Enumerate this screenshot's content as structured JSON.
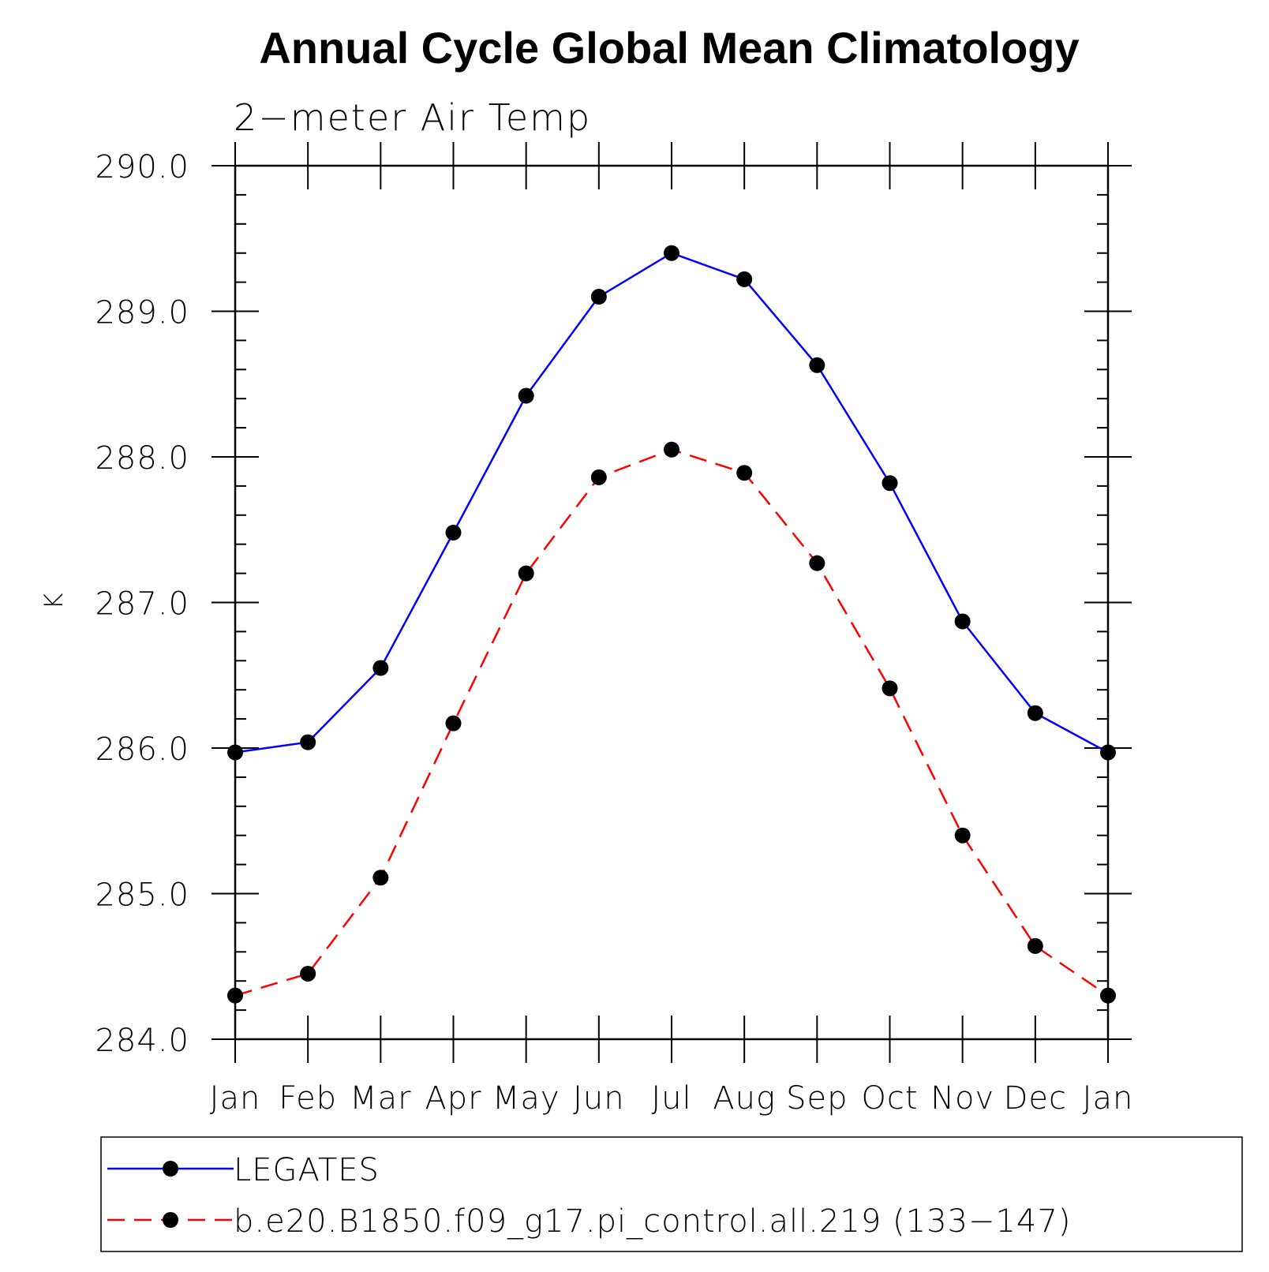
{
  "chart_data": {
    "type": "line",
    "title": "Annual Cycle Global Mean Climatology",
    "subtitle": "2−meter Air Temp",
    "xlabel": "",
    "ylabel": "K",
    "categories": [
      "Jan",
      "Feb",
      "Mar",
      "Apr",
      "May",
      "Jun",
      "Jul",
      "Aug",
      "Sep",
      "Oct",
      "Nov",
      "Dec",
      "Jan"
    ],
    "ylim": [
      284.0,
      290.0
    ],
    "yticks": [
      "284.0",
      "285.0",
      "286.0",
      "287.0",
      "288.0",
      "289.0",
      "290.0"
    ],
    "grid": false,
    "legend_position": "bottom",
    "series": [
      {
        "name": "LEGATES",
        "color": "#0000ff",
        "line_style": "solid",
        "marker": "filled-circle",
        "values": [
          285.97,
          286.04,
          286.55,
          287.48,
          288.42,
          289.1,
          289.4,
          289.22,
          288.63,
          287.82,
          286.87,
          286.24,
          285.97
        ]
      },
      {
        "name": "b.e20.B1850.f09_g17.pi_control.all.219 (133−147)",
        "color": "#ff0000",
        "line_style": "dashed",
        "marker": "filled-circle",
        "values": [
          284.3,
          284.45,
          285.11,
          286.17,
          287.2,
          287.86,
          288.05,
          287.89,
          287.27,
          286.41,
          285.4,
          284.64,
          284.3
        ]
      }
    ]
  }
}
